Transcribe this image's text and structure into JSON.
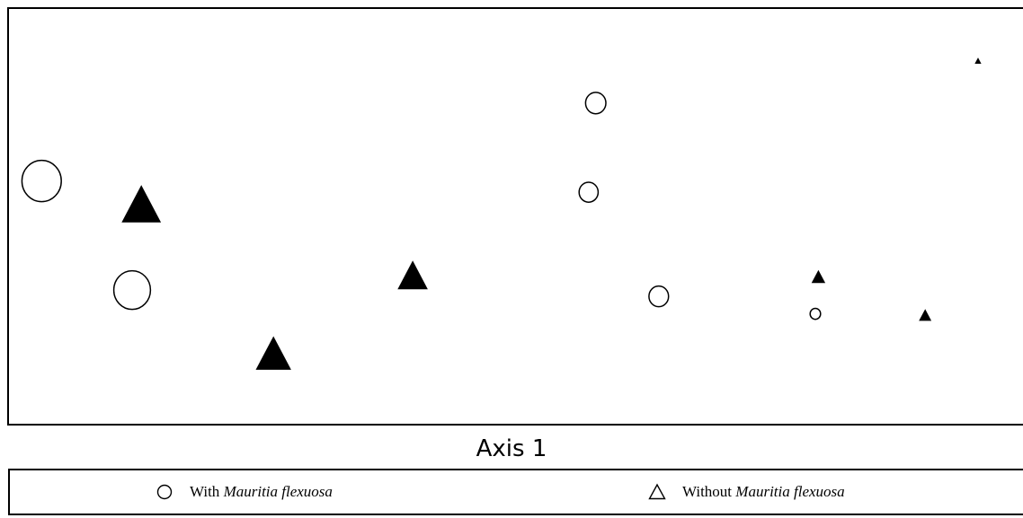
{
  "chart_data": {
    "type": "scatter",
    "title": "",
    "xlabel": "Axis 1",
    "ylabel": "",
    "grid": false,
    "legend_placement": "bottom",
    "xlim": [
      0,
      100
    ],
    "ylim": [
      0,
      100
    ],
    "series": [
      {
        "name": "With Mauritia flexuosa",
        "marker": "open-circle",
        "color": "#000000",
        "points": [
          {
            "x": 3.3,
            "y": 58.5,
            "size": 3.0
          },
          {
            "x": 12.2,
            "y": 32.3,
            "size": 2.8
          },
          {
            "x": 57.1,
            "y": 55.8,
            "size": 1.45
          },
          {
            "x": 57.8,
            "y": 77.2,
            "size": 1.55
          },
          {
            "x": 64.0,
            "y": 30.8,
            "size": 1.5
          },
          {
            "x": 79.4,
            "y": 26.6,
            "size": 0.8
          }
        ]
      },
      {
        "name": "Without Mauritia flexuosa",
        "marker": "filled-triangle",
        "color": "#000000",
        "points": [
          {
            "x": 13.1,
            "y": 52.6,
            "size": 3.0
          },
          {
            "x": 26.1,
            "y": 16.8,
            "size": 2.7
          },
          {
            "x": 39.8,
            "y": 35.6,
            "size": 2.3
          },
          {
            "x": 79.7,
            "y": 35.4,
            "size": 1.05
          },
          {
            "x": 90.2,
            "y": 26.2,
            "size": 0.95
          },
          {
            "x": 95.4,
            "y": 87.3,
            "size": 0.5
          }
        ]
      }
    ]
  },
  "legend": {
    "with_prefix": "With",
    "with_species": "Mauritia flexuosa",
    "without_prefix": "Without",
    "without_species": "Mauritia flexuosa"
  }
}
